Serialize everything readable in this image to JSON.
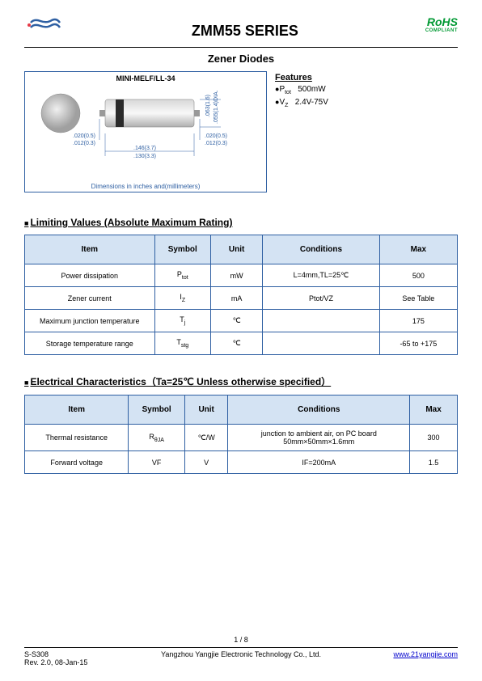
{
  "header": {
    "title": "ZMM55 SERIES",
    "rohs": "RoHS",
    "rohs_sub": "COMPLIANT",
    "logo_color_main": "#2e5fa2",
    "logo_color_accent": "#e63946"
  },
  "subtitle": "Zener Diodes",
  "diagram": {
    "title": "MINI-MELF/LL-34",
    "caption": "Dimensions in inches and(millimeters)",
    "dims": {
      "left_pad_top": ".020(0.5)",
      "left_pad_bot": ".012(0.3)",
      "right_pad_top": ".020(0.5)",
      "right_pad_bot": ".012(0.3)",
      "length_top": ".146(3.7)",
      "length_bot": ".130(3.3)",
      "dia1": ".063(1.6)",
      "dia2": ".055(1.4)DIA."
    },
    "colors": {
      "border": "#2e5fa2",
      "body": "#c8c8c8",
      "band": "#333333"
    }
  },
  "features": {
    "title": "Features",
    "f1_sym": "P",
    "f1_sub": "tot",
    "f1_val": "500mW",
    "f2_sym": "V",
    "f2_sub": "Z",
    "f2_val": "2.4V-75V"
  },
  "table1": {
    "title": "Limiting Values (Absolute Maximum Rating)",
    "headers": [
      "Item",
      "Symbol",
      "Unit",
      "Conditions",
      "Max"
    ],
    "col_widths": [
      "30%",
      "13%",
      "12%",
      "27%",
      "18%"
    ],
    "rows": [
      {
        "item": "Power dissipation",
        "sym": "P",
        "sym_sub": "tot",
        "unit": "mW",
        "cond": "L=4mm,TL=25℃",
        "max": "500"
      },
      {
        "item": "Zener current",
        "sym": "I",
        "sym_sub": "Z",
        "unit": "mA",
        "cond": "Ptot/VZ",
        "max": "See Table"
      },
      {
        "item": "Maximum junction temperature",
        "sym": "T",
        "sym_sub": "j",
        "unit": "℃",
        "cond": "",
        "max": "175"
      },
      {
        "item": "Storage temperature range",
        "sym": "T",
        "sym_sub": "stg",
        "unit": "℃",
        "cond": "",
        "max": "-65 to +175"
      }
    ]
  },
  "table2": {
    "title": "Electrical Characteristics（Ta=25℃ Unless otherwise specified）",
    "headers": [
      "Item",
      "Symbol",
      "Unit",
      "Conditions",
      "Max"
    ],
    "col_widths": [
      "24%",
      "13%",
      "10%",
      "42%",
      "11%"
    ],
    "rows": [
      {
        "item": "Thermal resistance",
        "sym": "R",
        "sym_sub": "θJA",
        "unit": "℃/W",
        "cond": "junction to ambient air, on PC board 50mm×50mm×1.6mm",
        "max": "300"
      },
      {
        "item": "Forward voltage",
        "sym": "VF",
        "sym_sub": "",
        "unit": "V",
        "cond": "IF=200mA",
        "max": "1.5"
      }
    ]
  },
  "footer": {
    "page": "1 / 8",
    "left1": "S-S308",
    "left2": "Rev. 2.0, 08-Jan-15",
    "center": "Yangzhou Yangjie Electronic Technology Co., Ltd.",
    "right": "www.21yangjie.com"
  },
  "style": {
    "header_bg": "#d4e3f3",
    "border_color": "#2e5fa2",
    "rohs_color": "#009933"
  }
}
